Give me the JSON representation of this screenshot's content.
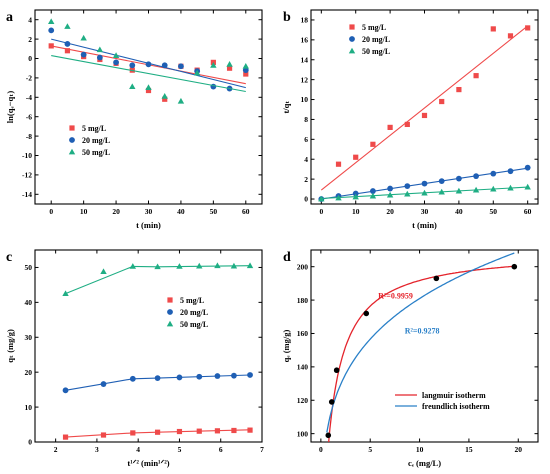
{
  "chart_data": [
    {
      "type": "scatter",
      "panel_label": "a",
      "xlabel": "t (min)",
      "ylabel": "ln(qₑ−qₜ)",
      "xlim": [
        -5,
        65
      ],
      "ylim": [
        -15,
        5
      ],
      "xticks": [
        0,
        10,
        20,
        30,
        40,
        50,
        60
      ],
      "yticks": [
        -14,
        -12,
        -10,
        -8,
        -6,
        -4,
        -2,
        0,
        2,
        4
      ],
      "legend_position": "bottom-left",
      "series": [
        {
          "name": "5 mg/L",
          "color": "#ef4a4a",
          "marker": "square",
          "x": [
            0,
            5,
            10,
            15,
            20,
            25,
            30,
            35,
            40,
            45,
            50,
            55,
            60
          ],
          "y": [
            1.3,
            0.8,
            0.2,
            -0.1,
            -0.5,
            -1.2,
            -3.3,
            -4.2,
            -0.8,
            -1.2,
            -0.4,
            -1.0,
            -1.6
          ],
          "fit": [
            [
              0,
              1.3
            ],
            [
              60,
              -2.6
            ]
          ]
        },
        {
          "name": "20 mg/L",
          "color": "#1f5fb4",
          "marker": "circle",
          "x": [
            0,
            5,
            10,
            15,
            20,
            25,
            30,
            35,
            40,
            45,
            50,
            55,
            60
          ],
          "y": [
            2.9,
            1.5,
            0.4,
            0.1,
            -0.4,
            -0.7,
            -0.6,
            -0.7,
            -0.8,
            -1.3,
            -2.9,
            -3.1,
            -1.2
          ],
          "fit": [
            [
              0,
              2.0
            ],
            [
              60,
              -3.0
            ]
          ]
        },
        {
          "name": "50 mg/L",
          "color": "#1fae84",
          "marker": "triangle",
          "x": [
            0,
            5,
            10,
            15,
            20,
            25,
            30,
            35,
            40,
            45,
            50,
            55,
            60
          ],
          "y": [
            3.8,
            3.3,
            2.1,
            0.9,
            0.3,
            -2.9,
            -3.0,
            -3.9,
            -4.4,
            -1.5,
            -0.7,
            -0.6,
            -0.8
          ],
          "fit": [
            [
              0,
              0.3
            ],
            [
              60,
              -3.4
            ]
          ]
        }
      ]
    },
    {
      "type": "scatter",
      "panel_label": "b",
      "xlabel": "t (min)",
      "ylabel": "t/qₜ",
      "xlim": [
        -3,
        63
      ],
      "ylim": [
        -0.5,
        19
      ],
      "xticks": [
        0,
        10,
        20,
        30,
        40,
        50,
        60
      ],
      "yticks": [
        0,
        2,
        4,
        6,
        8,
        10,
        12,
        14,
        16,
        18
      ],
      "legend_position": "top-left",
      "series": [
        {
          "name": "5 mg/L",
          "color": "#ef4a4a",
          "marker": "square",
          "x": [
            5,
            10,
            15,
            20,
            25,
            30,
            35,
            40,
            45,
            50,
            55,
            60
          ],
          "y": [
            3.5,
            4.2,
            5.5,
            7.2,
            7.5,
            8.4,
            9.8,
            11.0,
            12.4,
            17.1,
            16.4,
            17.2
          ],
          "fit": [
            [
              0,
              0.9
            ],
            [
              60,
              17.4
            ]
          ]
        },
        {
          "name": "20 mg/L",
          "color": "#1f5fb4",
          "marker": "circle",
          "x": [
            0,
            5,
            10,
            15,
            20,
            25,
            30,
            35,
            40,
            45,
            50,
            55,
            60
          ],
          "y": [
            0.0,
            0.3,
            0.55,
            0.8,
            1.05,
            1.3,
            1.55,
            1.8,
            2.05,
            2.3,
            2.55,
            2.8,
            3.15
          ],
          "fit": [
            [
              0,
              0.0
            ],
            [
              60,
              3.1
            ]
          ]
        },
        {
          "name": "50 mg/L",
          "color": "#1fae84",
          "marker": "triangle",
          "x": [
            0,
            5,
            10,
            15,
            20,
            25,
            30,
            35,
            40,
            45,
            50,
            55,
            60
          ],
          "y": [
            0.0,
            0.1,
            0.2,
            0.3,
            0.4,
            0.5,
            0.6,
            0.7,
            0.8,
            0.9,
            1.0,
            1.1,
            1.2
          ],
          "fit": [
            [
              0,
              0.05
            ],
            [
              60,
              1.2
            ]
          ]
        }
      ]
    },
    {
      "type": "scatter",
      "panel_label": "c",
      "xlabel": "t¹ᐟ² (min¹ᐟ²)",
      "ylabel": "qₜ (mg/g)",
      "xlim": [
        1.5,
        7.0
      ],
      "ylim": [
        0,
        55
      ],
      "xticks": [
        2,
        3,
        4,
        5,
        6,
        7
      ],
      "yticks": [
        0,
        10,
        20,
        30,
        40,
        50
      ],
      "legend_position": "middle-right",
      "series": [
        {
          "name": "5 mg/L",
          "color": "#ef4a4a",
          "marker": "square",
          "x": [
            2.24,
            3.16,
            3.87,
            4.47,
            5.0,
            5.48,
            5.92,
            6.32,
            6.71
          ],
          "y": [
            1.4,
            2.0,
            2.6,
            2.8,
            3.0,
            3.1,
            3.2,
            3.3,
            3.4
          ],
          "fit": [
            [
              2.24,
              1.4
            ],
            [
              3.87,
              2.6
            ],
            [
              4.47,
              2.8
            ],
            [
              6.71,
              3.5
            ]
          ]
        },
        {
          "name": "20 mg/L",
          "color": "#1f5fb4",
          "marker": "circle",
          "x": [
            2.24,
            3.16,
            3.87,
            4.47,
            5.0,
            5.48,
            5.92,
            6.32,
            6.71
          ],
          "y": [
            14.8,
            16.6,
            18.1,
            18.3,
            18.5,
            18.7,
            18.9,
            19.0,
            19.2
          ],
          "fit": [
            [
              2.24,
              14.8
            ],
            [
              3.87,
              18.1
            ],
            [
              4.47,
              18.3
            ],
            [
              6.71,
              19.2
            ]
          ]
        },
        {
          "name": "50 mg/L",
          "color": "#1fae84",
          "marker": "triangle",
          "x": [
            2.24,
            3.16,
            3.87,
            4.47,
            5.0,
            5.48,
            5.92,
            6.32,
            6.71
          ],
          "y": [
            42.5,
            48.8,
            50.3,
            50.2,
            50.3,
            50.4,
            50.5,
            50.4,
            50.5
          ],
          "fit": [
            [
              2.24,
              42.5
            ],
            [
              3.87,
              50.3
            ],
            [
              4.47,
              50.2
            ],
            [
              6.71,
              50.5
            ]
          ]
        }
      ]
    },
    {
      "type": "scatter",
      "panel_label": "d",
      "xlabel": "cₑ (mg/L)",
      "ylabel": "qₑ (mg/g)",
      "xlim": [
        -1,
        22
      ],
      "ylim": [
        95,
        210
      ],
      "xticks": [
        0,
        5,
        10,
        15,
        20
      ],
      "yticks": [
        100,
        120,
        140,
        160,
        180,
        200
      ],
      "legend_position": "bottom-right",
      "points": {
        "color": "#000000",
        "x": [
          0.75,
          1.1,
          1.6,
          4.6,
          11.7,
          19.6
        ],
        "y": [
          99,
          119,
          138,
          172,
          193,
          200
        ]
      },
      "series": [
        {
          "name": "langmuir isotherm",
          "color": "#e4242c",
          "model": "langmuir",
          "qmax": 210,
          "KL": 1.05,
          "annotation": "R²=0.9959"
        },
        {
          "name": "freundlich isotherm",
          "color": "#2a80c8",
          "model": "freundlich",
          "KF": 112,
          "n": 4.8,
          "annotation": "R²=0.9278"
        }
      ]
    }
  ]
}
